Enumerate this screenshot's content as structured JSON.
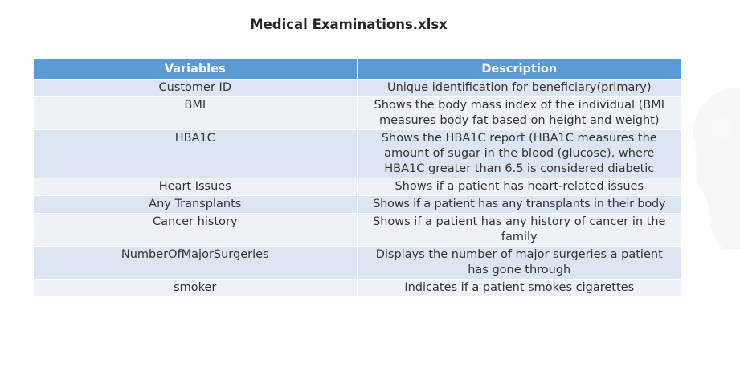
{
  "document": {
    "title": "Medical Examinations.xlsx"
  },
  "table": {
    "headers": [
      "Variables",
      "Description"
    ],
    "rows": [
      {
        "variable": "Customer ID",
        "description": "Unique identification for beneficiary(primary)"
      },
      {
        "variable": "BMI",
        "description": "Shows the body mass index of the individual (BMI measures body fat based on height and weight)"
      },
      {
        "variable": "HBA1C",
        "description": "Shows the HBA1C report (HBA1C measures the amount of sugar in the blood (glucose), where HBA1C greater than 6.5 is considered diabetic"
      },
      {
        "variable": "Heart Issues",
        "description": "Shows if a patient has heart-related issues"
      },
      {
        "variable": "Any Transplants",
        "description": "Shows if a patient has any transplants in their body"
      },
      {
        "variable": "Cancer history",
        "description": "Shows if a patient has any history of cancer in the family"
      },
      {
        "variable": "NumberOfMajorSurgeries",
        "description": "Displays the number of major surgeries a patient has gone through"
      },
      {
        "variable": "smoker",
        "description": "Indicates if a patient smokes cigarettes"
      }
    ]
  },
  "colors": {
    "header_bg": "#5b9bd5",
    "row_odd_bg": "#dce6f2",
    "row_even_bg": "#eef2f8"
  },
  "decorations": {
    "watermark": "faint-logo-watermark"
  }
}
